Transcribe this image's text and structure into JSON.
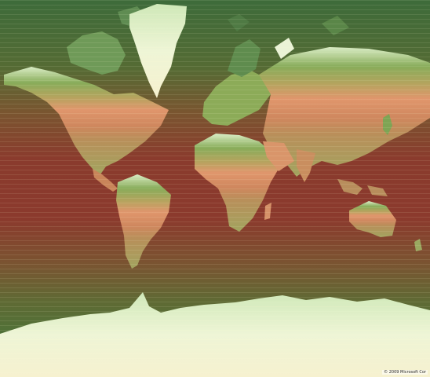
{
  "map": {
    "copyright": "© 2009 Microsoft Cor"
  },
  "colors": {
    "ocean_warm": "#8a3a2e",
    "ocean_mid": "#7a5a33",
    "ocean_cool": "#3f6a3a",
    "land_cold": "#e9f5da",
    "land_temperate": "#7da24e",
    "land_warm": "#d98e68",
    "ice": "#eef6d8"
  }
}
